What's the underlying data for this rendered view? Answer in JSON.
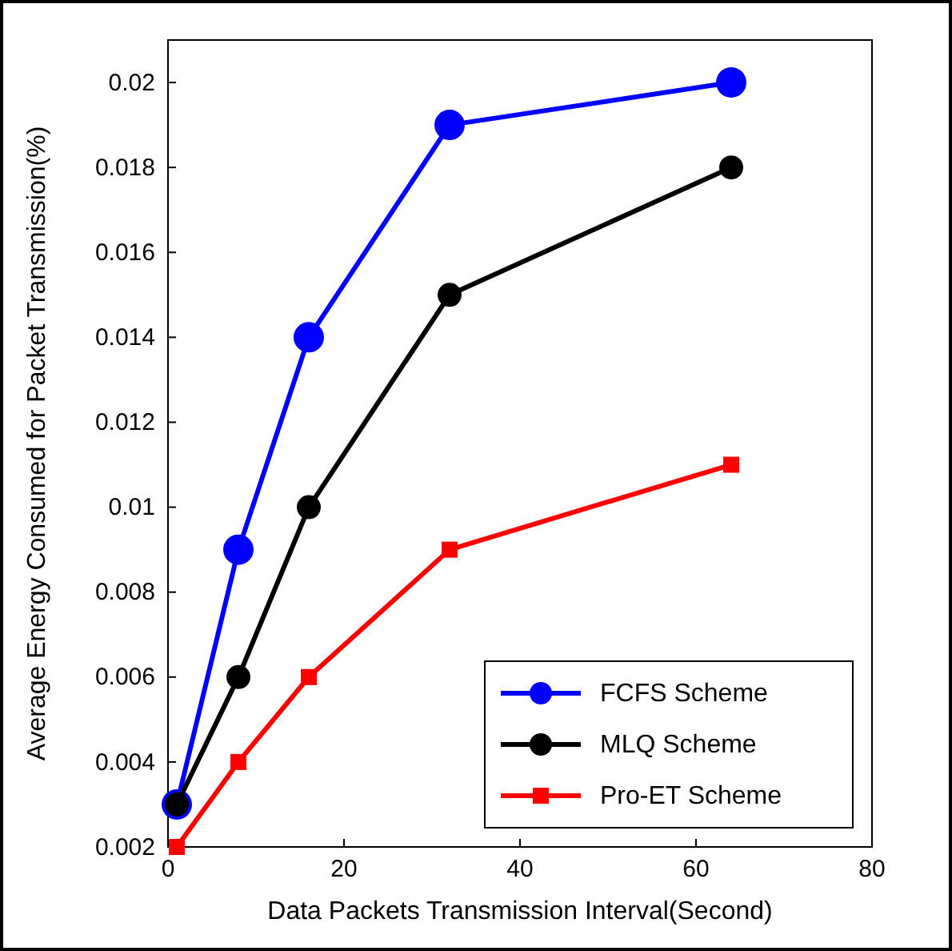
{
  "chart_data": {
    "type": "line",
    "xlabel": "Data Packets Transmission Interval(Second)",
    "ylabel": "Average Energy Consumed for Packet Transmission(%)",
    "x": [
      1,
      8,
      16,
      32,
      64
    ],
    "series": [
      {
        "name": "FCFS Scheme",
        "color": "#0000ff",
        "marker": "circle",
        "values": [
          0.003,
          0.009,
          0.014,
          0.019,
          0.02
        ]
      },
      {
        "name": "MLQ Scheme",
        "color": "#000000",
        "marker": "circle",
        "values": [
          0.003,
          0.006,
          0.01,
          0.015,
          0.018
        ]
      },
      {
        "name": "Pro-ET Scheme",
        "color": "#ff0000",
        "marker": "square",
        "values": [
          0.002,
          0.004,
          0.006,
          0.009,
          0.011
        ]
      }
    ],
    "xlim": [
      0,
      80
    ],
    "xticks": [
      0,
      20,
      40,
      60,
      80
    ],
    "ylim": [
      0.002,
      0.021
    ],
    "yticks": [
      0.002,
      0.004,
      0.006,
      0.008,
      0.01,
      0.012,
      0.014,
      0.016,
      0.018,
      0.02
    ],
    "grid": false,
    "legend": "bottom right",
    "line_style": "solid"
  }
}
